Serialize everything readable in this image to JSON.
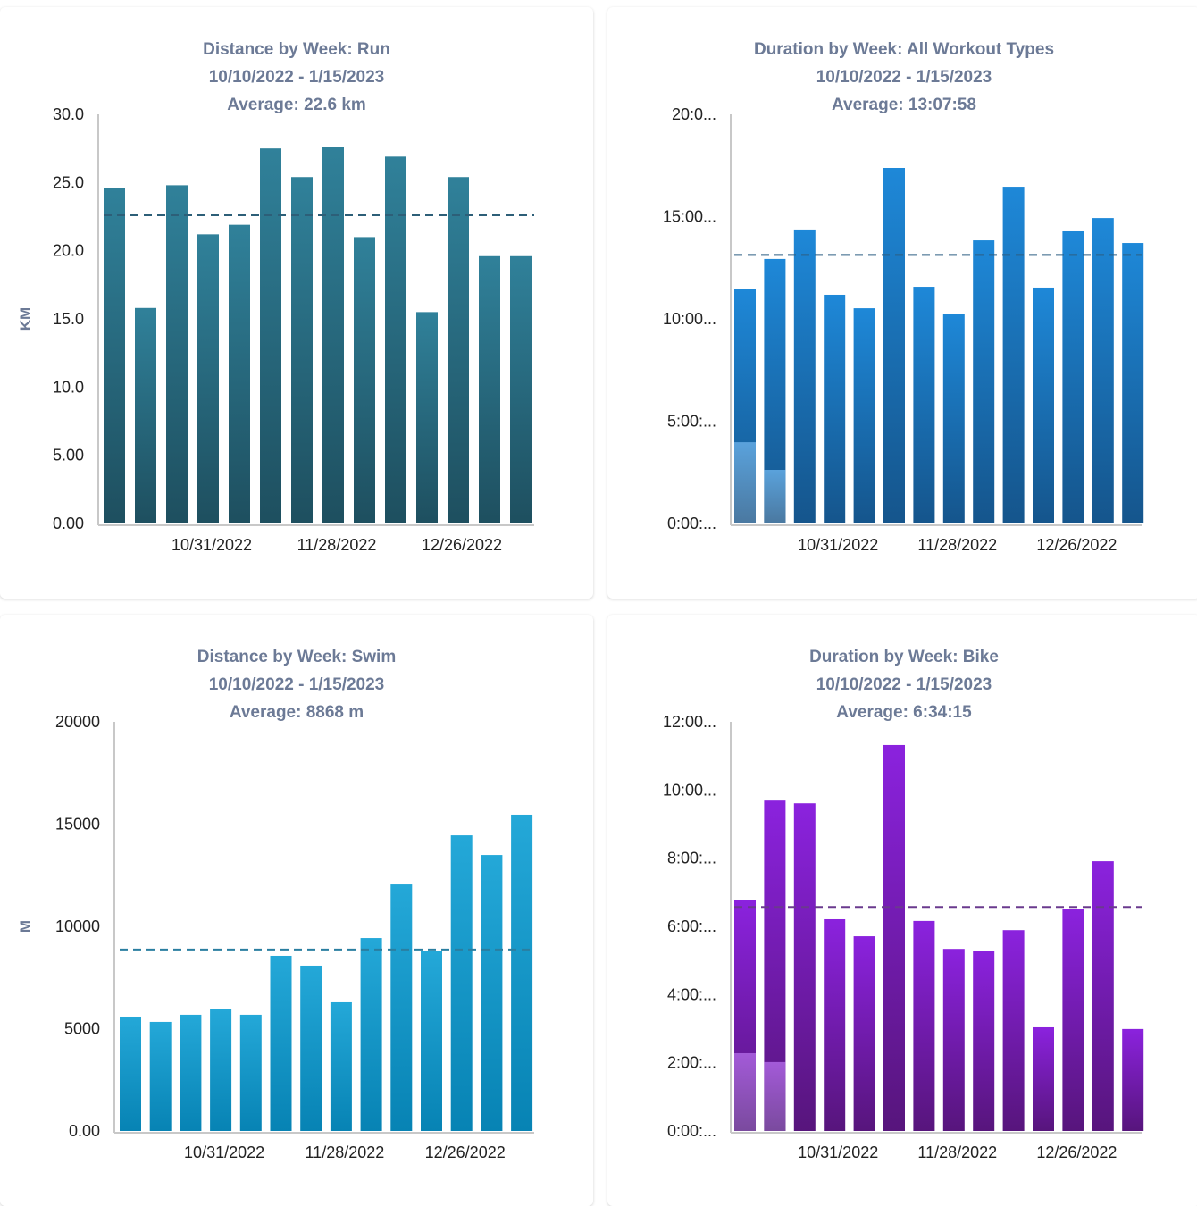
{
  "chart_data": [
    {
      "type": "bar",
      "title": [
        "Distance by Week: Run",
        "10/10/2022 - 1/15/2023",
        "Average: 22.6 km"
      ],
      "ylabel": "KM",
      "ylim": [
        0,
        30
      ],
      "y_ticks": [
        {
          "value": 0,
          "label": "0.00"
        },
        {
          "value": 5,
          "label": "5.00"
        },
        {
          "value": 10,
          "label": "10.0"
        },
        {
          "value": 15,
          "label": "15.0"
        },
        {
          "value": 20,
          "label": "20.0"
        },
        {
          "value": 25,
          "label": "25.0"
        },
        {
          "value": 30,
          "label": "30.0"
        }
      ],
      "x_ticks": [
        {
          "index": 3,
          "label": "10/31/2022"
        },
        {
          "index": 7,
          "label": "11/28/2022"
        },
        {
          "index": 11,
          "label": "12/26/2022"
        }
      ],
      "values": [
        24.6,
        15.8,
        24.8,
        21.2,
        21.9,
        27.5,
        25.4,
        27.6,
        21.0,
        26.9,
        15.5,
        25.4,
        19.6,
        19.6
      ],
      "average": 22.6,
      "colors": {
        "top": "#30819a",
        "bottom": "#1e4f5f",
        "avg": "#2d5f78"
      }
    },
    {
      "type": "bar",
      "title": [
        "Duration by Week: All Workout Types",
        "10/10/2022 - 1/15/2023",
        "Average: 13:07:58"
      ],
      "ylabel": "",
      "ylim": [
        0,
        20
      ],
      "y_unit": "hours",
      "y_ticks": [
        {
          "value": 0,
          "label": "0:00:..."
        },
        {
          "value": 5,
          "label": "5:00:..."
        },
        {
          "value": 10,
          "label": "10:00..."
        },
        {
          "value": 15,
          "label": "15:00..."
        },
        {
          "value": 20,
          "label": "20:0..."
        }
      ],
      "x_ticks": [
        {
          "index": 3,
          "label": "10/31/2022"
        },
        {
          "index": 7,
          "label": "11/28/2022"
        },
        {
          "index": 11,
          "label": "12/26/2022"
        }
      ],
      "values": [
        11.48,
        12.93,
        14.37,
        11.18,
        10.52,
        17.38,
        11.57,
        10.26,
        13.84,
        16.46,
        11.53,
        14.28,
        14.93,
        13.71
      ],
      "highlight_values": [
        3.97,
        2.62
      ],
      "average": 13.13,
      "colors": {
        "top": "#1e88d8",
        "bottom": "#15558c",
        "hl_top": "#5aa2dc",
        "hl_bottom": "#4a78a0",
        "avg": "#2d5f84"
      }
    },
    {
      "type": "bar",
      "title": [
        "Distance by Week: Swim",
        "10/10/2022 - 1/15/2023",
        "Average: 8868 m"
      ],
      "ylabel": "M",
      "ylim": [
        0,
        20000
      ],
      "y_ticks": [
        {
          "value": 0,
          "label": "0.00"
        },
        {
          "value": 5000,
          "label": "5000"
        },
        {
          "value": 10000,
          "label": "10000"
        },
        {
          "value": 15000,
          "label": "15000"
        },
        {
          "value": 20000,
          "label": "20000"
        }
      ],
      "x_ticks": [
        {
          "index": 3,
          "label": "10/31/2022"
        },
        {
          "index": 7,
          "label": "11/28/2022"
        },
        {
          "index": 11,
          "label": "12/26/2022"
        }
      ],
      "values": [
        5590,
        5330,
        5680,
        5940,
        5680,
        8560,
        8080,
        6290,
        9430,
        12050,
        8780,
        14450,
        13490,
        15460
      ],
      "average": 8868,
      "colors": {
        "top": "#24a8d8",
        "bottom": "#0783b4",
        "avg": "#2a7ea0"
      }
    },
    {
      "type": "bar",
      "title": [
        "Duration by Week: Bike",
        "10/10/2022 - 1/15/2023",
        "Average: 6:34:15"
      ],
      "ylabel": "",
      "ylim": [
        0,
        12
      ],
      "y_unit": "hours",
      "y_ticks": [
        {
          "value": 0,
          "label": "0:00:..."
        },
        {
          "value": 2,
          "label": "2:00:..."
        },
        {
          "value": 4,
          "label": "4:00:..."
        },
        {
          "value": 6,
          "label": "6:00:..."
        },
        {
          "value": 8,
          "label": "8:00:..."
        },
        {
          "value": 10,
          "label": "10:00..."
        },
        {
          "value": 12,
          "label": "12:00..."
        }
      ],
      "x_ticks": [
        {
          "index": 3,
          "label": "10/31/2022"
        },
        {
          "index": 7,
          "label": "11/28/2022"
        },
        {
          "index": 11,
          "label": "12/26/2022"
        }
      ],
      "values": [
        6.76,
        9.69,
        9.61,
        6.21,
        5.71,
        11.32,
        6.16,
        5.34,
        5.27,
        5.89,
        3.04,
        6.5,
        7.91,
        2.99
      ],
      "highlight_values": [
        2.28,
        2.02
      ],
      "average": 6.57,
      "colors": {
        "top": "#8b22de",
        "bottom": "#57157c",
        "hl_top": "#a35ad8",
        "hl_bottom": "#7a4a9e",
        "avg": "#6a3a8e"
      }
    }
  ]
}
